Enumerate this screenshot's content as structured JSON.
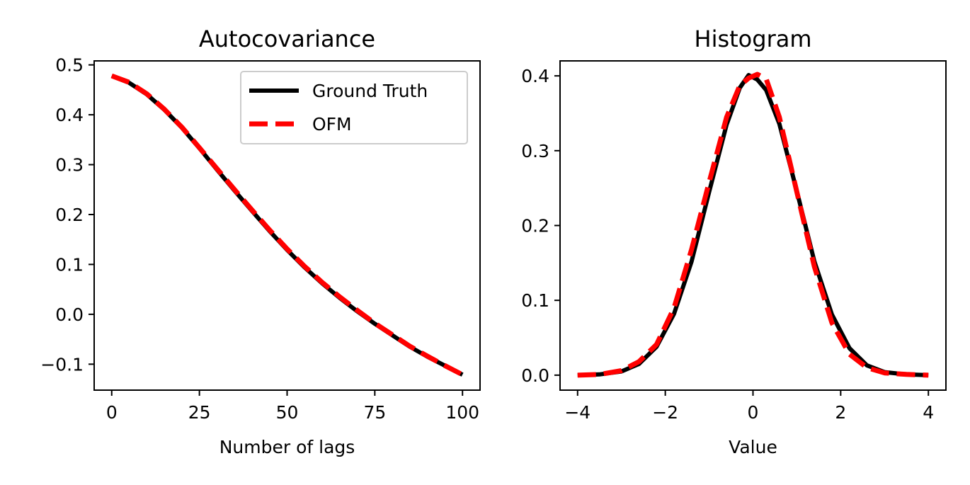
{
  "chart_data": [
    {
      "type": "line",
      "title": "Autocovariance",
      "xlabel": "Number of lags",
      "ylabel": "",
      "xlim": [
        -5,
        105
      ],
      "ylim": [
        -0.152,
        0.508
      ],
      "xticks": [
        0,
        25,
        50,
        75,
        100
      ],
      "xtick_labels": [
        "0",
        "25",
        "50",
        "75",
        "100"
      ],
      "yticks": [
        0.5,
        0.4,
        0.3,
        0.2,
        0.1,
        0.0,
        -0.1
      ],
      "ytick_labels": [
        "0.5",
        "0.4",
        "0.3",
        "0.2",
        "0.1",
        "0.0",
        "−0.1"
      ],
      "legend_position": "top-right",
      "grid": false,
      "series": [
        {
          "name": "Ground Truth",
          "color": "#000000",
          "style": "solid",
          "x": [
            0,
            5,
            10,
            15,
            20,
            25,
            30,
            35,
            40,
            45,
            50,
            55,
            60,
            65,
            70,
            75,
            80,
            85,
            90,
            95,
            100
          ],
          "y": [
            0.478,
            0.464,
            0.441,
            0.41,
            0.374,
            0.333,
            0.29,
            0.248,
            0.207,
            0.167,
            0.129,
            0.094,
            0.062,
            0.033,
            0.006,
            -0.019,
            -0.042,
            -0.065,
            -0.085,
            -0.103,
            -0.121
          ]
        },
        {
          "name": "OFM",
          "color": "#ff0000",
          "style": "dashed",
          "x": [
            0,
            5,
            10,
            15,
            20,
            25,
            30,
            35,
            40,
            45,
            50,
            55,
            60,
            65,
            70,
            75,
            80,
            85,
            90,
            95,
            100
          ],
          "y": [
            0.478,
            0.465,
            0.442,
            0.411,
            0.375,
            0.334,
            0.292,
            0.25,
            0.209,
            0.169,
            0.131,
            0.096,
            0.064,
            0.035,
            0.008,
            -0.018,
            -0.041,
            -0.064,
            -0.084,
            -0.103,
            -0.121
          ]
        }
      ]
    },
    {
      "type": "line",
      "title": "Histogram",
      "xlabel": "Value",
      "ylabel": "",
      "xlim": [
        -4.4,
        4.4
      ],
      "ylim": [
        -0.02,
        0.42
      ],
      "xticks": [
        -4,
        -2,
        0,
        2,
        4
      ],
      "xtick_labels": [
        "−4",
        "−2",
        "0",
        "2",
        "4"
      ],
      "yticks": [
        0.4,
        0.3,
        0.2,
        0.1,
        0.0
      ],
      "ytick_labels": [
        "0.4",
        "0.3",
        "0.2",
        "0.1",
        "0.0"
      ],
      "grid": false,
      "series": [
        {
          "name": "Ground Truth",
          "color": "#000000",
          "style": "solid",
          "x": [
            -4.0,
            -3.5,
            -3.0,
            -2.6,
            -2.2,
            -1.8,
            -1.4,
            -1.0,
            -0.6,
            -0.3,
            -0.1,
            0.1,
            0.3,
            0.6,
            1.0,
            1.4,
            1.8,
            2.2,
            2.6,
            3.0,
            3.5,
            4.0
          ],
          "y": [
            0.0,
            0.001,
            0.005,
            0.015,
            0.038,
            0.082,
            0.152,
            0.245,
            0.335,
            0.384,
            0.401,
            0.395,
            0.381,
            0.336,
            0.246,
            0.152,
            0.081,
            0.036,
            0.013,
            0.004,
            0.001,
            0.0
          ]
        },
        {
          "name": "OFM",
          "color": "#ff0000",
          "style": "dashed",
          "x": [
            -4.0,
            -3.5,
            -3.0,
            -2.6,
            -2.2,
            -1.8,
            -1.4,
            -1.0,
            -0.6,
            -0.3,
            -0.1,
            0.1,
            0.3,
            0.6,
            1.0,
            1.4,
            1.8,
            2.2,
            2.6,
            3.0,
            3.5,
            4.0
          ],
          "y": [
            0.0,
            0.001,
            0.006,
            0.018,
            0.041,
            0.09,
            0.168,
            0.258,
            0.345,
            0.387,
            0.397,
            0.402,
            0.396,
            0.345,
            0.245,
            0.145,
            0.07,
            0.028,
            0.01,
            0.003,
            0.001,
            0.0
          ]
        }
      ]
    }
  ]
}
